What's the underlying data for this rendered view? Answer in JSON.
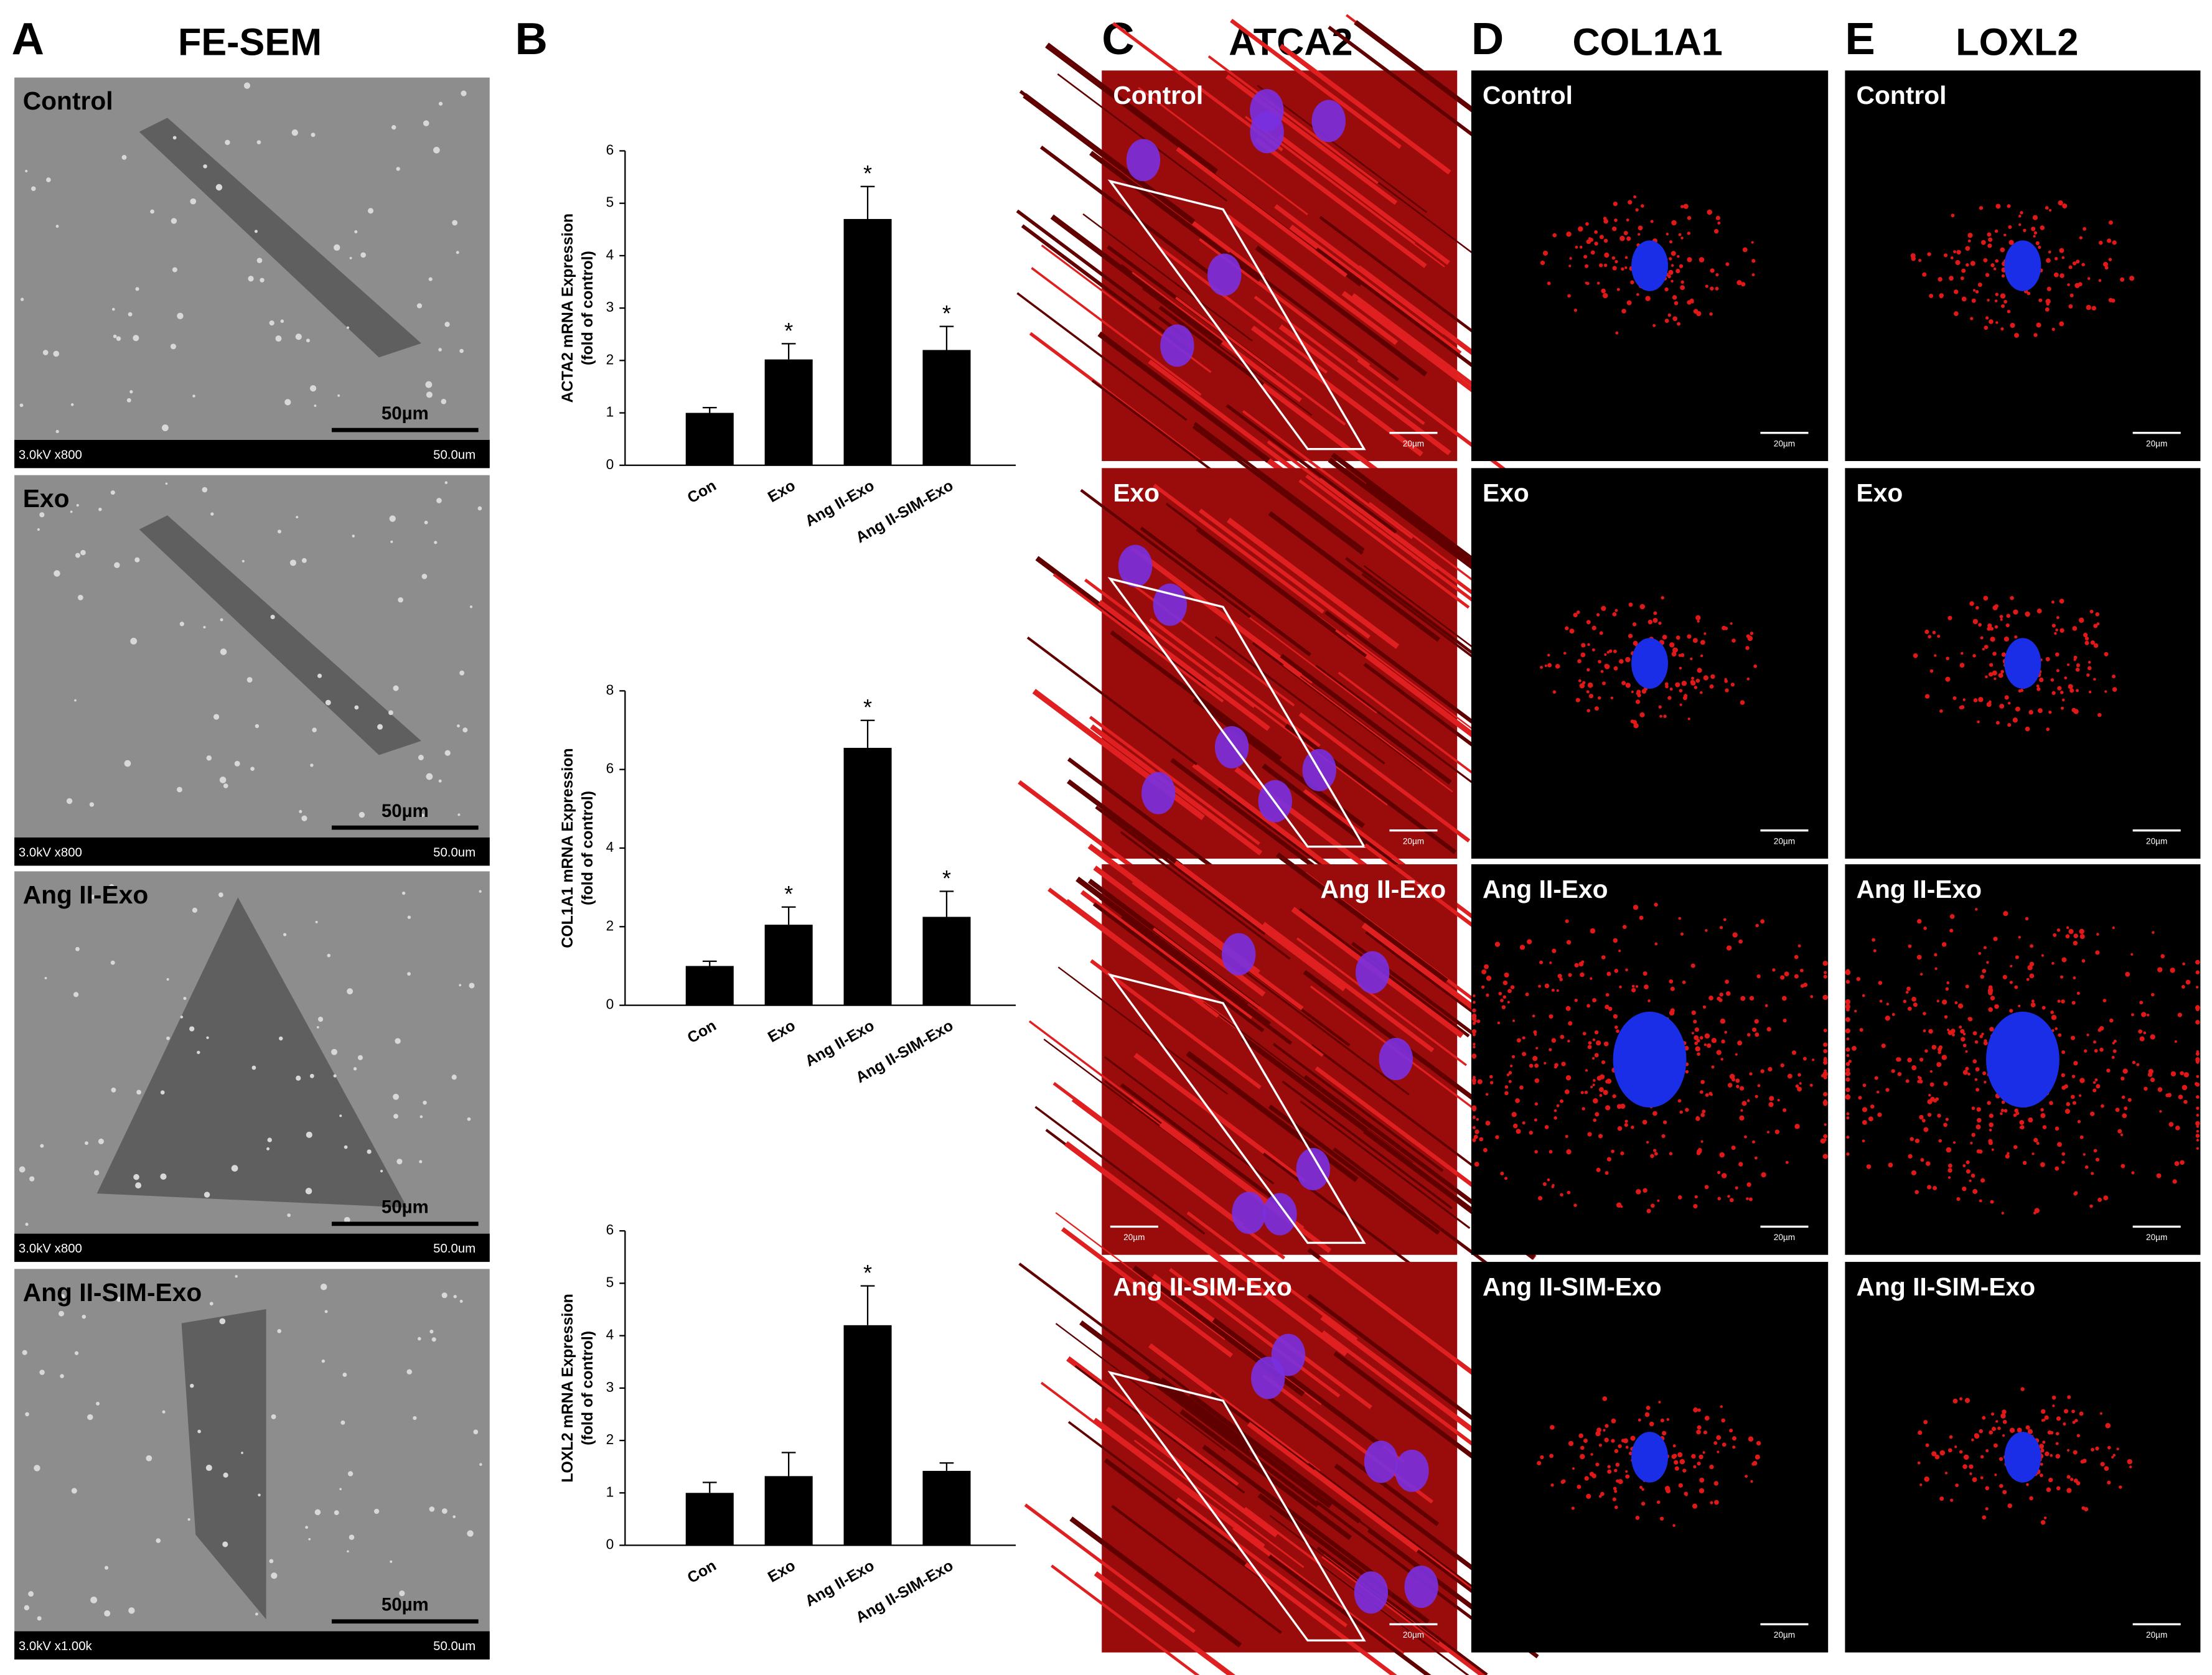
{
  "figure": {
    "panels": [
      {
        "letter": "A",
        "title": "FE-SEM",
        "images": [
          {
            "label": "Control",
            "voltage": "3.0kV x800",
            "scale_text": "50.0um",
            "scale_bar": "50µm"
          },
          {
            "label": "Exo",
            "voltage": "3.0kV x800",
            "scale_text": "50.0um",
            "scale_bar": "50µm"
          },
          {
            "label": "Ang II-Exo",
            "voltage": "3.0kV x800",
            "scale_text": "50.0um",
            "scale_bar": "50µm"
          },
          {
            "label": "Ang II-SIM-Exo",
            "voltage": "3.0kV x1.00k",
            "scale_text": "50.0um",
            "scale_bar": "50µm"
          }
        ]
      },
      {
        "letter": "B"
      },
      {
        "letter": "C",
        "title": "ATCA2",
        "images": [
          {
            "label": "Control",
            "scale_bar": "20µm"
          },
          {
            "label": "Exo",
            "scale_bar": "20µm"
          },
          {
            "label": "Ang II-Exo",
            "scale_bar": "20µm"
          },
          {
            "label": "Ang II-SIM-Exo",
            "scale_bar": "20µm"
          }
        ]
      },
      {
        "letter": "D",
        "title": "COL1A1",
        "images": [
          {
            "label": "Control",
            "scale_bar": "20µm"
          },
          {
            "label": "Exo",
            "scale_bar": "20µm"
          },
          {
            "label": "Ang II-Exo",
            "scale_bar": "20µm"
          },
          {
            "label": "Ang II-SIM-Exo",
            "scale_bar": "20µm"
          }
        ]
      },
      {
        "letter": "E",
        "title": "LOXL2",
        "images": [
          {
            "label": "Control",
            "scale_bar": "20µm"
          },
          {
            "label": "Exo",
            "scale_bar": "20µm"
          },
          {
            "label": "Ang II-Exo",
            "scale_bar": "20µm"
          },
          {
            "label": "Ang II-SIM-Exo",
            "scale_bar": "20µm"
          }
        ]
      }
    ]
  },
  "chart_data": [
    {
      "type": "bar",
      "ylabel": [
        "ACTA2 mRNA Expression",
        "(fold of control)"
      ],
      "categories": [
        "Con",
        "Exo",
        "Ang II-Exo",
        "Ang II-SIM-Exo"
      ],
      "values": [
        1.0,
        2.02,
        4.7,
        2.2
      ],
      "errors": [
        0.1,
        0.3,
        0.62,
        0.45
      ],
      "significance": [
        null,
        "*",
        "*",
        "*"
      ],
      "color": "#000000",
      "ylim": [
        0,
        6
      ],
      "yticks": [
        0,
        1,
        2,
        3,
        4,
        5,
        6
      ]
    },
    {
      "type": "bar",
      "ylabel": [
        "COL1A1 mRNA Expression",
        "(fold of control)"
      ],
      "categories": [
        "Con",
        "Exo",
        "Ang II-Exo",
        "Ang II-SIM-Exo"
      ],
      "values": [
        1.0,
        2.05,
        6.55,
        2.25
      ],
      "errors": [
        0.12,
        0.45,
        0.7,
        0.65
      ],
      "significance": [
        null,
        "*",
        "*",
        "*"
      ],
      "color": "#000000",
      "ylim": [
        0,
        8
      ],
      "yticks": [
        0,
        2,
        4,
        6,
        8
      ]
    },
    {
      "type": "bar",
      "ylabel": [
        "LOXL2 mRNA Expression",
        "(fold of control)"
      ],
      "categories": [
        "Con",
        "Exo",
        "Ang II-Exo",
        "Ang II-SIM-Exo"
      ],
      "values": [
        1.0,
        1.32,
        4.2,
        1.42
      ],
      "errors": [
        0.2,
        0.45,
        0.75,
        0.15
      ],
      "significance": [
        null,
        null,
        "*",
        null
      ],
      "color": "#000000",
      "ylim": [
        0,
        6
      ],
      "yticks": [
        0,
        1,
        2,
        3,
        4,
        5,
        6
      ]
    }
  ]
}
